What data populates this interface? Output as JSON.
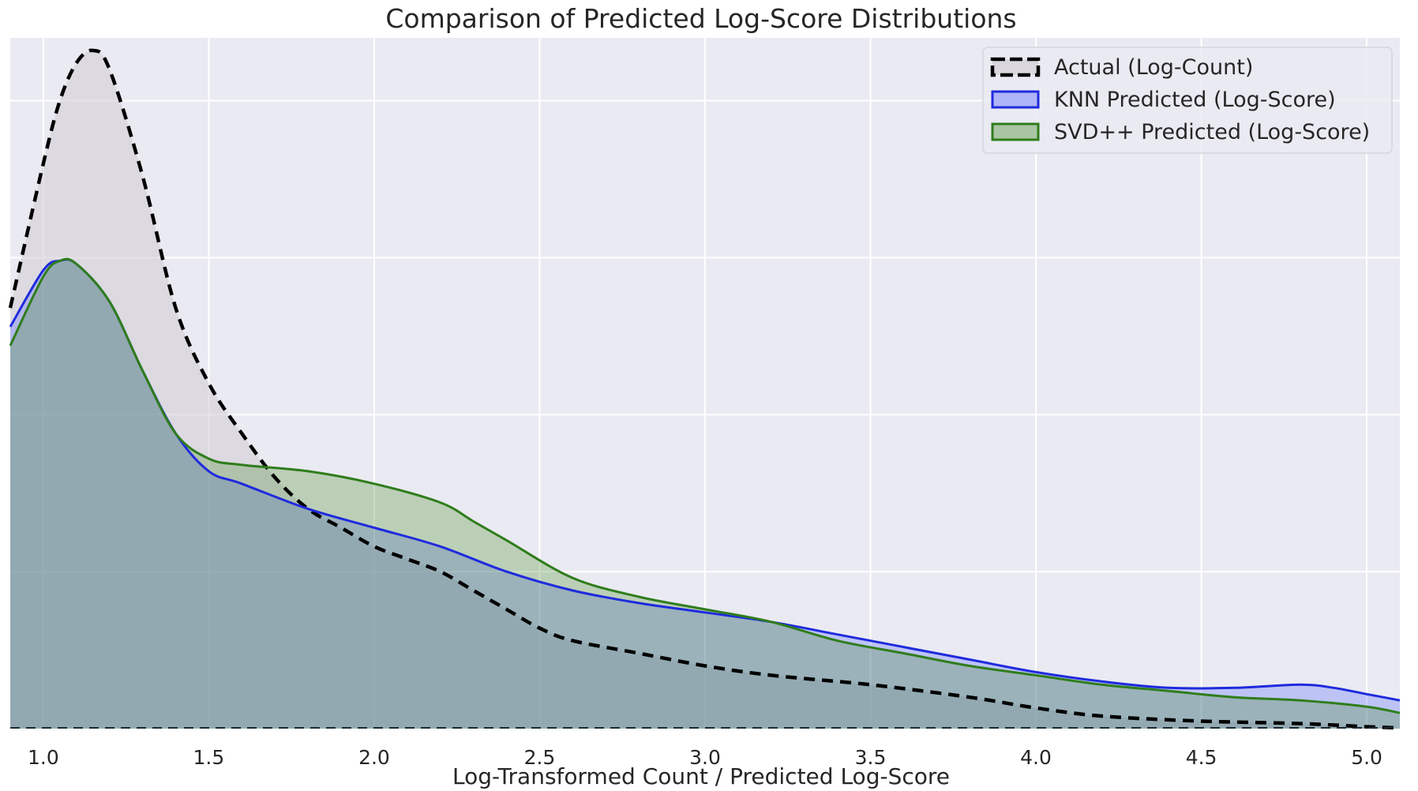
{
  "chart_data": {
    "type": "area",
    "title": "Comparison of Predicted Log-Score Distributions",
    "xlabel": "Log-Transformed Count / Predicted Log-Score",
    "ylabel": "",
    "xlim": [
      0.9,
      5.1
    ],
    "ylim": [
      0,
      1.1
    ],
    "x_ticks": [
      "1.0",
      "1.5",
      "2.0",
      "2.5",
      "3.0",
      "3.5",
      "4.0",
      "4.5",
      "5.0"
    ],
    "y_ticks_shown": false,
    "grid": true,
    "legend_position": "top-right",
    "colors": {
      "background": "#eaeaf2",
      "grid": "#ffffff",
      "actual": "#000000",
      "knn": "#1f2bdd",
      "svd": "#2f7d1c"
    },
    "series": [
      {
        "name": "Actual (Log-Count)",
        "style": "dashed",
        "x": [
          0.9,
          1.0,
          1.05,
          1.1,
          1.15,
          1.2,
          1.3,
          1.4,
          1.5,
          1.6,
          1.7,
          1.8,
          1.9,
          2.0,
          2.1,
          2.2,
          2.3,
          2.4,
          2.5,
          2.6,
          2.8,
          3.0,
          3.2,
          3.5,
          3.8,
          4.0,
          4.2,
          4.5,
          4.8,
          5.0,
          5.1
        ],
        "y": [
          0.67,
          0.9,
          1.0,
          1.06,
          1.08,
          1.05,
          0.88,
          0.67,
          0.55,
          0.47,
          0.4,
          0.35,
          0.32,
          0.29,
          0.27,
          0.25,
          0.22,
          0.19,
          0.16,
          0.14,
          0.12,
          0.1,
          0.085,
          0.07,
          0.05,
          0.033,
          0.02,
          0.012,
          0.008,
          0.003,
          0.001
        ]
      },
      {
        "name": "KNN Predicted (Log-Score)",
        "style": "solid",
        "x": [
          0.9,
          1.0,
          1.05,
          1.1,
          1.2,
          1.3,
          1.4,
          1.5,
          1.6,
          1.8,
          2.0,
          2.2,
          2.4,
          2.6,
          2.8,
          3.0,
          3.2,
          3.4,
          3.6,
          3.8,
          4.0,
          4.2,
          4.4,
          4.6,
          4.8,
          4.9,
          5.0,
          5.1
        ],
        "y": [
          0.64,
          0.73,
          0.745,
          0.74,
          0.68,
          0.57,
          0.47,
          0.41,
          0.39,
          0.35,
          0.32,
          0.29,
          0.25,
          0.22,
          0.2,
          0.185,
          0.17,
          0.15,
          0.13,
          0.11,
          0.09,
          0.075,
          0.065,
          0.065,
          0.07,
          0.065,
          0.055,
          0.045
        ]
      },
      {
        "name": "SVD++ Predicted (Log-Score)",
        "style": "solid",
        "x": [
          0.9,
          1.0,
          1.05,
          1.1,
          1.2,
          1.3,
          1.4,
          1.5,
          1.6,
          1.8,
          2.0,
          2.2,
          2.3,
          2.4,
          2.6,
          2.8,
          3.0,
          3.2,
          3.4,
          3.6,
          3.8,
          4.0,
          4.2,
          4.4,
          4.6,
          4.8,
          5.0,
          5.1
        ],
        "y": [
          0.61,
          0.72,
          0.745,
          0.74,
          0.68,
          0.57,
          0.47,
          0.43,
          0.42,
          0.41,
          0.39,
          0.36,
          0.33,
          0.3,
          0.24,
          0.21,
          0.19,
          0.17,
          0.14,
          0.12,
          0.1,
          0.085,
          0.07,
          0.06,
          0.05,
          0.045,
          0.035,
          0.025
        ]
      }
    ]
  }
}
